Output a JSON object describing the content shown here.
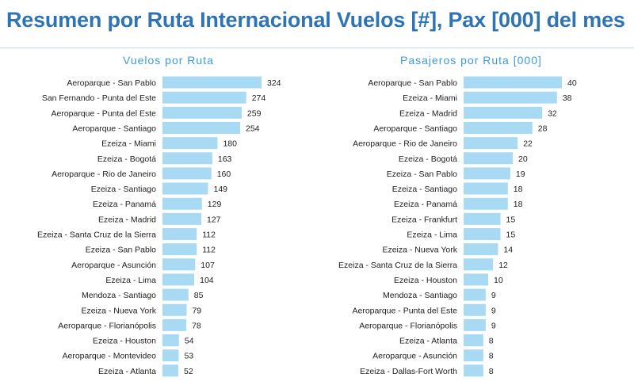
{
  "header": {
    "title": "Resumen por Ruta Internacional Vuelos [#], Pax [000] del mes"
  },
  "colors": {
    "bar": "#a8daf3",
    "title": "#2e74b5",
    "chart_title": "#3a9bd6"
  },
  "chart_data": [
    {
      "type": "bar",
      "orientation": "horizontal",
      "title": "Vuelos por Ruta",
      "categories": [
        "Aeroparque - San Pablo",
        "San Fernando - Punta del Este",
        "Aeroparque - Punta del Este",
        "Aeroparque - Santiago",
        "Ezeiza - Miami",
        "Ezeiza - Bogotá",
        "Aeroparque - Rio de Janeiro",
        "Ezeiza - Santiago",
        "Ezeiza - Panamá",
        "Ezeiza - Madrid",
        "Ezeiza - Santa Cruz de la Sierra",
        "Ezeiza - San Pablo",
        "Aeroparque - Asunción",
        "Ezeiza - Lima",
        "Mendoza - Santiago",
        "Ezeiza - Nueva York",
        "Aeroparque - Florianópolis",
        "Ezeiza - Houston",
        "Aeroparque - Montevideo",
        "Ezeiza - Atlanta"
      ],
      "values": [
        324,
        274,
        259,
        254,
        180,
        163,
        160,
        149,
        129,
        127,
        112,
        112,
        107,
        104,
        85,
        79,
        78,
        54,
        53,
        52
      ],
      "xlim": [
        0,
        324
      ]
    },
    {
      "type": "bar",
      "orientation": "horizontal",
      "title": "Pasajeros por Ruta [000]",
      "categories": [
        "Aeroparque - San Pablo",
        "Ezeiza - Miami",
        "Ezeiza - Madrid",
        "Aeroparque - Santiago",
        "Aeroparque - Rio de Janeiro",
        "Ezeiza - Bogotá",
        "Ezeiza - San Pablo",
        "Ezeiza - Santiago",
        "Ezeiza - Panamá",
        "Ezeiza - Frankfurt",
        "Ezeiza - Lima",
        "Ezeiza - Nueva York",
        "Ezeiza - Santa Cruz de la Sierra",
        "Ezeiza - Houston",
        "Mendoza - Santiago",
        "Aeroparque - Punta del Este",
        "Aeroparque - Florianópolis",
        "Ezeiza - Atlanta",
        "Aeroparque - Asunción",
        "Ezeiza - Dallas-Fort Worth"
      ],
      "values": [
        40,
        38,
        32,
        28,
        22,
        20,
        19,
        18,
        18,
        15,
        15,
        14,
        12,
        10,
        9,
        9,
        9,
        8,
        8,
        8
      ],
      "xlim": [
        0,
        40
      ]
    }
  ]
}
